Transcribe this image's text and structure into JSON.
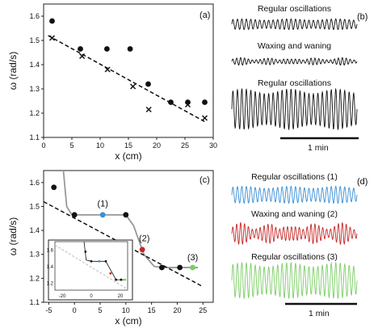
{
  "colors": {
    "black": "#111111",
    "blue": "#3a8fd6",
    "red": "#c62828",
    "green": "#7ccd66",
    "gray_line": "#999999",
    "inset_dashed": "#bbbbbb"
  },
  "panels": {
    "a": {
      "letter": "(a)"
    },
    "b": {
      "letter": "(b)",
      "traces": [
        {
          "title": "Regular oscillations",
          "pattern": "regular",
          "color": "#111111",
          "amplitude": 0.55
        },
        {
          "title": "Waxing and waning",
          "pattern": "waxing",
          "color": "#111111",
          "amplitude": 0.4
        },
        {
          "title": "Regular oscillations",
          "pattern": "regular",
          "color": "#111111",
          "amplitude": 1.0
        }
      ],
      "scalebar_label": "1 min"
    },
    "c": {
      "letter": "(c)",
      "markers": [
        "(1)",
        "(2)",
        "(3)"
      ]
    },
    "d": {
      "letter": "(d)",
      "traces": [
        {
          "title": "Regular oscillations (1)",
          "pattern": "regular",
          "color": "#3a8fd6",
          "amplitude": 0.7
        },
        {
          "title": "Waxing and waning (2)",
          "pattern": "waxing",
          "color": "#c62828",
          "amplitude": 0.8
        },
        {
          "title": "Regular oscillations (3)",
          "pattern": "regular",
          "color": "#7ccd66",
          "amplitude": 1.0
        }
      ],
      "scalebar_label": "1 min"
    }
  },
  "chart_data": [
    {
      "panel": "a",
      "type": "scatter",
      "xlabel": "x (cm)",
      "ylabel": "ω (rad/s)",
      "xlim": [
        0,
        30
      ],
      "ylim": [
        1.1,
        1.65
      ],
      "xticks": [
        0,
        5,
        10,
        15,
        20,
        25,
        30
      ],
      "yticks": [
        1.1,
        1.2,
        1.3,
        1.4,
        1.5,
        1.6
      ],
      "series": [
        {
          "marker": "circle",
          "points": [
            [
              1.5,
              1.58
            ],
            [
              6.5,
              1.465
            ],
            [
              11.2,
              1.465
            ],
            [
              15.3,
              1.465
            ],
            [
              18.5,
              1.32
            ],
            [
              22.5,
              1.245
            ],
            [
              25.5,
              1.245
            ],
            [
              28.5,
              1.245
            ]
          ]
        },
        {
          "marker": "cross",
          "points": [
            [
              1.5,
              1.51
            ],
            [
              6.8,
              1.435
            ],
            [
              11.3,
              1.38
            ],
            [
              15.8,
              1.31
            ],
            [
              18.6,
              1.215
            ],
            [
              25.5,
              1.235
            ],
            [
              28.5,
              1.18
            ]
          ]
        },
        {
          "marker": "dashed-line",
          "points": [
            [
              0.8,
              1.52
            ],
            [
              28.5,
              1.165
            ]
          ]
        }
      ]
    },
    {
      "panel": "c",
      "type": "line",
      "xlabel": "x (cm)",
      "ylabel": "ω (rad/s)",
      "xlim": [
        -6,
        27
      ],
      "ylim": [
        1.1,
        1.65
      ],
      "xticks": [
        -5,
        0,
        5,
        10,
        15,
        20,
        25
      ],
      "yticks": [
        1.1,
        1.2,
        1.3,
        1.4,
        1.5,
        1.6
      ],
      "series": [
        {
          "marker": "circle",
          "color": "#111111",
          "points": [
            [
              -4,
              1.58
            ],
            [
              0,
              1.465
            ],
            [
              10,
              1.465
            ],
            [
              17,
              1.245
            ],
            [
              20.5,
              1.245
            ]
          ]
        },
        {
          "marker": "circle",
          "color": "#3a8fd6",
          "points": [
            [
              5.5,
              1.465
            ]
          ]
        },
        {
          "marker": "circle",
          "color": "#c62828",
          "points": [
            [
              13.2,
              1.32
            ]
          ]
        },
        {
          "marker": "circle",
          "color": "#7ccd66",
          "points": [
            [
              23,
              1.245
            ]
          ]
        },
        {
          "marker": "solid-line",
          "color": "#111111",
          "points": [
            [
              0,
              1.465
            ],
            [
              10,
              1.465
            ]
          ]
        },
        {
          "marker": "solid-line",
          "color": "#111111",
          "points": [
            [
              17,
              1.245
            ],
            [
              24,
              1.245
            ]
          ]
        },
        {
          "marker": "gray-curve",
          "color": "#999999",
          "points": [
            [
              -2.2,
              1.66
            ],
            [
              -1.5,
              1.5
            ],
            [
              -0.5,
              1.465
            ],
            [
              0,
              1.465
            ],
            [
              10,
              1.465
            ],
            [
              11.5,
              1.42
            ],
            [
              13.5,
              1.3
            ],
            [
              15.5,
              1.25
            ],
            [
              17,
              1.245
            ],
            [
              24,
              1.245
            ]
          ]
        },
        {
          "marker": "dashed-line",
          "color": "#111111",
          "points": [
            [
              -6,
              1.52
            ],
            [
              25,
              1.165
            ]
          ]
        }
      ],
      "inset": {
        "xlim": [
          -25,
          25
        ],
        "ylim": [
          1.12,
          1.7
        ],
        "xticks": [
          -20,
          0,
          20
        ],
        "yticks": [
          1.2,
          1.4,
          1.6
        ]
      }
    }
  ]
}
